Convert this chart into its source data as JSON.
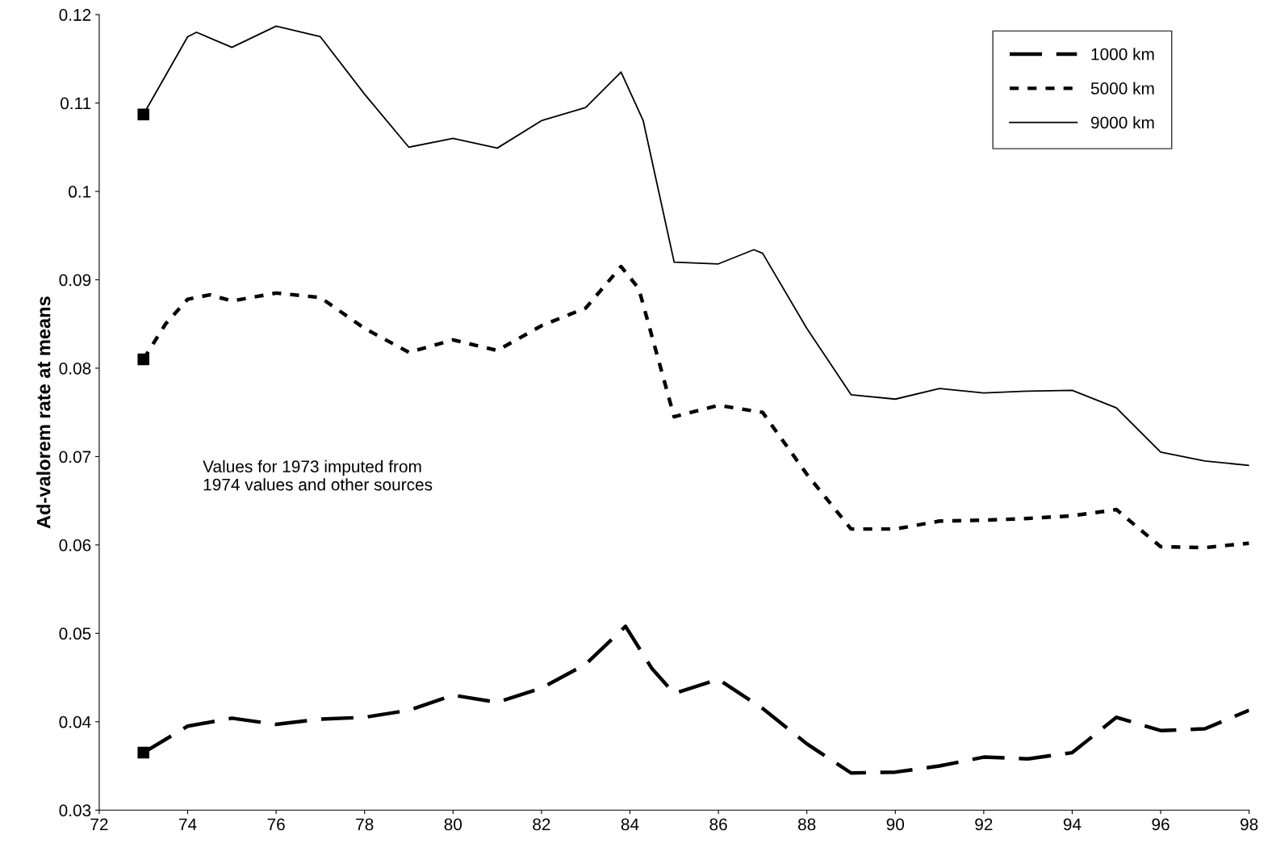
{
  "chart_data": {
    "type": "line",
    "ylabel": "Ad-valorem rate at means",
    "xlim": [
      72,
      98
    ],
    "xticks": [
      72,
      74,
      76,
      78,
      80,
      82,
      84,
      86,
      88,
      90,
      92,
      94,
      96,
      98
    ],
    "ylim": [
      0.03,
      0.12
    ],
    "yticks": [
      0.03,
      0.04,
      0.05,
      0.06,
      0.07,
      0.08,
      0.09,
      0.1,
      0.11,
      0.12
    ],
    "grid": false,
    "legend": "top right",
    "annotations": [
      "Values for 1973 imputed from\n1974 values and other sources"
    ],
    "series": [
      {
        "name": "1000 km",
        "color": "#000000",
        "line_style": "dashed",
        "x": [
          73,
          74,
          75,
          76,
          77,
          78,
          79,
          80,
          81,
          82,
          83,
          83.9,
          84.5,
          85,
          86,
          87,
          88,
          89,
          90,
          91,
          92,
          93,
          94,
          95,
          96,
          97,
          98
        ],
        "values": [
          0.0365,
          0.0395,
          0.0404,
          0.0397,
          0.0403,
          0.0405,
          0.0413,
          0.043,
          0.0422,
          0.0438,
          0.0465,
          0.0508,
          0.046,
          0.0432,
          0.0448,
          0.0415,
          0.0375,
          0.0342,
          0.0343,
          0.035,
          0.036,
          0.0358,
          0.0365,
          0.0405,
          0.039,
          0.0392,
          0.0413
        ]
      },
      {
        "name": "5000 km",
        "color": "#000000",
        "line_style": "dotted",
        "x": [
          73,
          73.5,
          74,
          74.5,
          75,
          76,
          77,
          78,
          79,
          80,
          81,
          82,
          83,
          83.8,
          84.2,
          85,
          86,
          87,
          88,
          89,
          90,
          91,
          92,
          93,
          94,
          95,
          96,
          97,
          98
        ],
        "values": [
          0.081,
          0.085,
          0.0878,
          0.0883,
          0.0876,
          0.0885,
          0.088,
          0.0845,
          0.0818,
          0.0832,
          0.082,
          0.0848,
          0.0868,
          0.0915,
          0.089,
          0.0745,
          0.0758,
          0.075,
          0.068,
          0.0618,
          0.0618,
          0.0627,
          0.0628,
          0.063,
          0.0633,
          0.064,
          0.0598,
          0.0597,
          0.0602
        ]
      },
      {
        "name": "9000 km",
        "color": "#000000",
        "line_style": "solid",
        "x": [
          73,
          74,
          74.2,
          75,
          76,
          77,
          78,
          79,
          80,
          81,
          82,
          83,
          83.8,
          84.3,
          85,
          86,
          86.8,
          87,
          88,
          89,
          90,
          91,
          92,
          93,
          94,
          95,
          96,
          97,
          98
        ],
        "values": [
          0.1087,
          0.1175,
          0.118,
          0.1163,
          0.1187,
          0.1175,
          0.111,
          0.105,
          0.106,
          0.1049,
          0.108,
          0.1095,
          0.1135,
          0.108,
          0.092,
          0.0918,
          0.0934,
          0.093,
          0.0845,
          0.077,
          0.0765,
          0.0777,
          0.0772,
          0.0774,
          0.0775,
          0.0755,
          0.0705,
          0.0695,
          0.069
        ]
      },
      {
        "type": "scatter",
        "color": "#000000",
        "marker": "square",
        "x": [
          73,
          73,
          73
        ],
        "values": [
          0.0365,
          0.081,
          0.1087
        ]
      }
    ]
  }
}
